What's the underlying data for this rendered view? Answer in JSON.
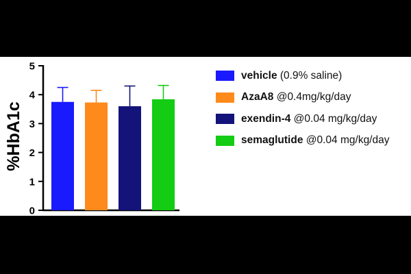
{
  "chart_data": {
    "type": "bar",
    "ylabel": "%HbA1c",
    "ylim": [
      0,
      5
    ],
    "yticks": [
      0,
      1,
      2,
      3,
      4,
      5
    ],
    "series": [
      {
        "name": "vehicle",
        "note": "(0.9% saline)",
        "value": 3.75,
        "error": 0.5,
        "color": "#1a1aff"
      },
      {
        "name": "AzaA8",
        "note": "@0.4mg/kg/day",
        "value": 3.73,
        "error": 0.42,
        "color": "#ff8a1c"
      },
      {
        "name": "exendin-4",
        "note": "@0.04 mg/kg/day",
        "value": 3.6,
        "error": 0.7,
        "color": "#13137a"
      },
      {
        "name": "semaglutide",
        "note": "@0.04 mg/kg/day",
        "value": 3.84,
        "error": 0.48,
        "color": "#13cc13"
      }
    ]
  }
}
